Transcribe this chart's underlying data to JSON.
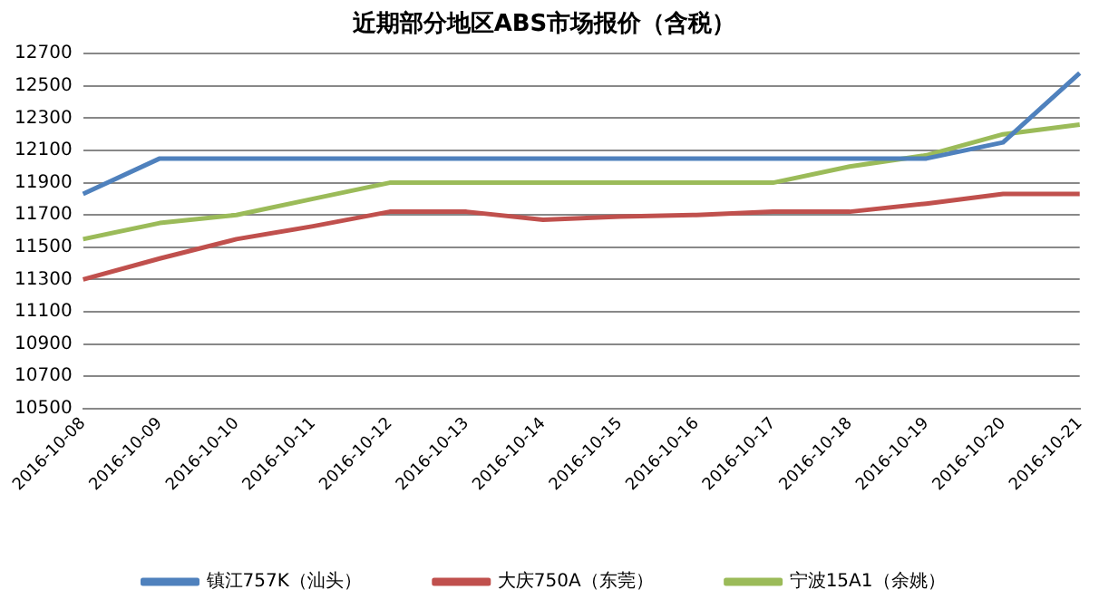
{
  "chart_data": {
    "type": "line",
    "title": "近期部分地区ABS市场报价（含税）",
    "categories": [
      "2016-10-08",
      "2016-10-09",
      "2016-10-10",
      "2016-10-11",
      "2016-10-12",
      "2016-10-13",
      "2016-10-14",
      "2016-10-15",
      "2016-10-16",
      "2016-10-17",
      "2016-10-18",
      "2016-10-19",
      "2016-10-20",
      "2016-10-21"
    ],
    "series": [
      {
        "name": "镇江757K（汕头）",
        "color": "#4f81bd",
        "values": [
          11830,
          12050,
          12050,
          12050,
          12050,
          12050,
          12050,
          12050,
          12050,
          12050,
          12050,
          12050,
          12150,
          12580
        ]
      },
      {
        "name": "大庆750A（东莞）",
        "color": "#c0504d",
        "values": [
          11300,
          11430,
          11550,
          11630,
          11720,
          11720,
          11670,
          11690,
          11700,
          11720,
          11720,
          11770,
          11830,
          11830
        ]
      },
      {
        "name": "宁波15A1（余姚）",
        "color": "#9bbb59",
        "values": [
          11550,
          11650,
          11700,
          11800,
          11900,
          11900,
          11900,
          11900,
          11900,
          11900,
          12000,
          12070,
          12200,
          12260
        ]
      }
    ],
    "ylim": [
      10500,
      12700
    ],
    "yticks": [
      10500,
      10700,
      10900,
      11100,
      11300,
      11500,
      11700,
      11900,
      12100,
      12300,
      12500,
      12700
    ],
    "grid": "y",
    "legend": "bottom",
    "marker": "none",
    "line_style": "solid"
  }
}
